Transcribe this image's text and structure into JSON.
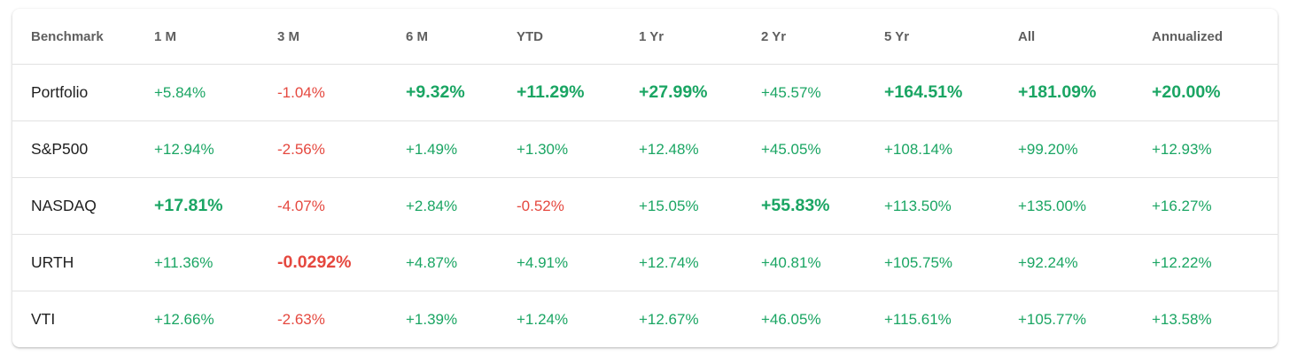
{
  "colors": {
    "positive": "#1aa563",
    "negative": "#e5483f",
    "header_text": "#5f5f5f"
  },
  "table": {
    "headers": [
      "Benchmark",
      "1 M",
      "3 M",
      "6 M",
      "YTD",
      "1 Yr",
      "2 Yr",
      "5 Yr",
      "All",
      "Annualized"
    ],
    "rows": [
      {
        "name": "Portfolio",
        "cells": [
          {
            "v": "+5.84%",
            "neg": false,
            "bold": false
          },
          {
            "v": "-1.04%",
            "neg": true,
            "bold": false
          },
          {
            "v": "+9.32%",
            "neg": false,
            "bold": true
          },
          {
            "v": "+11.29%",
            "neg": false,
            "bold": true
          },
          {
            "v": "+27.99%",
            "neg": false,
            "bold": true
          },
          {
            "v": "+45.57%",
            "neg": false,
            "bold": false
          },
          {
            "v": "+164.51%",
            "neg": false,
            "bold": true
          },
          {
            "v": "+181.09%",
            "neg": false,
            "bold": true
          },
          {
            "v": "+20.00%",
            "neg": false,
            "bold": true
          }
        ]
      },
      {
        "name": "S&P500",
        "cells": [
          {
            "v": "+12.94%",
            "neg": false,
            "bold": false
          },
          {
            "v": "-2.56%",
            "neg": true,
            "bold": false
          },
          {
            "v": "+1.49%",
            "neg": false,
            "bold": false
          },
          {
            "v": "+1.30%",
            "neg": false,
            "bold": false
          },
          {
            "v": "+12.48%",
            "neg": false,
            "bold": false
          },
          {
            "v": "+45.05%",
            "neg": false,
            "bold": false
          },
          {
            "v": "+108.14%",
            "neg": false,
            "bold": false
          },
          {
            "v": "+99.20%",
            "neg": false,
            "bold": false
          },
          {
            "v": "+12.93%",
            "neg": false,
            "bold": false
          }
        ]
      },
      {
        "name": "NASDAQ",
        "cells": [
          {
            "v": "+17.81%",
            "neg": false,
            "bold": true
          },
          {
            "v": "-4.07%",
            "neg": true,
            "bold": false
          },
          {
            "v": "+2.84%",
            "neg": false,
            "bold": false
          },
          {
            "v": "-0.52%",
            "neg": true,
            "bold": false
          },
          {
            "v": "+15.05%",
            "neg": false,
            "bold": false
          },
          {
            "v": "+55.83%",
            "neg": false,
            "bold": true
          },
          {
            "v": "+113.50%",
            "neg": false,
            "bold": false
          },
          {
            "v": "+135.00%",
            "neg": false,
            "bold": false
          },
          {
            "v": "+16.27%",
            "neg": false,
            "bold": false
          }
        ]
      },
      {
        "name": "URTH",
        "cells": [
          {
            "v": "+11.36%",
            "neg": false,
            "bold": false
          },
          {
            "v": "-0.0292%",
            "neg": true,
            "bold": true
          },
          {
            "v": "+4.87%",
            "neg": false,
            "bold": false
          },
          {
            "v": "+4.91%",
            "neg": false,
            "bold": false
          },
          {
            "v": "+12.74%",
            "neg": false,
            "bold": false
          },
          {
            "v": "+40.81%",
            "neg": false,
            "bold": false
          },
          {
            "v": "+105.75%",
            "neg": false,
            "bold": false
          },
          {
            "v": "+92.24%",
            "neg": false,
            "bold": false
          },
          {
            "v": "+12.22%",
            "neg": false,
            "bold": false
          }
        ]
      },
      {
        "name": "VTI",
        "cells": [
          {
            "v": "+12.66%",
            "neg": false,
            "bold": false
          },
          {
            "v": "-2.63%",
            "neg": true,
            "bold": false
          },
          {
            "v": "+1.39%",
            "neg": false,
            "bold": false
          },
          {
            "v": "+1.24%",
            "neg": false,
            "bold": false
          },
          {
            "v": "+12.67%",
            "neg": false,
            "bold": false
          },
          {
            "v": "+46.05%",
            "neg": false,
            "bold": false
          },
          {
            "v": "+115.61%",
            "neg": false,
            "bold": false
          },
          {
            "v": "+105.77%",
            "neg": false,
            "bold": false
          },
          {
            "v": "+13.58%",
            "neg": false,
            "bold": false
          }
        ]
      }
    ]
  }
}
